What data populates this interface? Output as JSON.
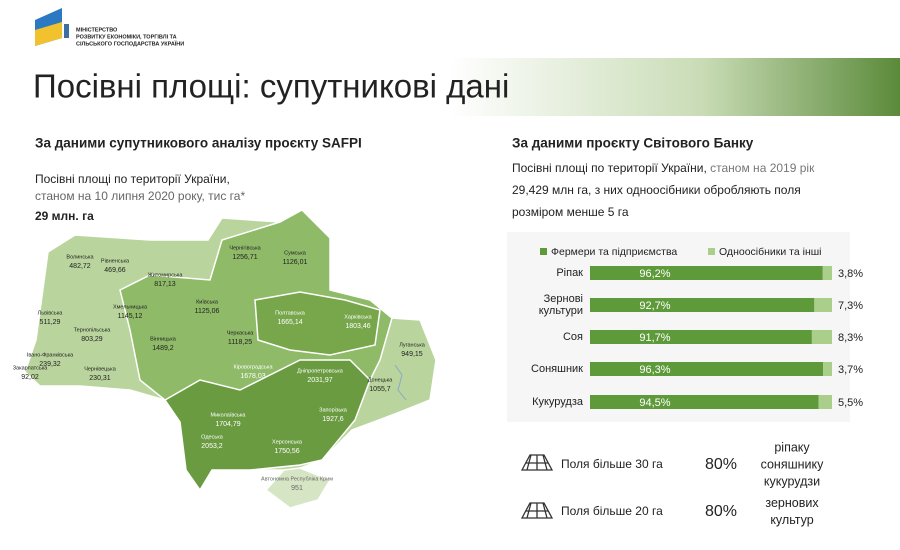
{
  "ministry": [
    "МІНІСТЕРСТВО",
    "РОЗВИТКУ ЕКОНОМІКИ, ТОРГІВЛІ ТА",
    "СІЛЬСЬКОГО ГОСПОДАРСТВА УКРАЇНИ"
  ],
  "title": "Посівні площі: супутникові дані",
  "left": {
    "heading": "За даними супутникового аналізу проєкту SAFPI",
    "line1": "Посівні площі по території України,",
    "line2": "станом на 10 липня 2020 року, тис га*",
    "total": "29 млн. га"
  },
  "map": {
    "regions": [
      {
        "name": "Волинська",
        "value": "482,72"
      },
      {
        "name": "Рівненська",
        "value": "469,66"
      },
      {
        "name": "Львівська",
        "value": "511,29"
      },
      {
        "name": "Тернопільська",
        "value": "803,29"
      },
      {
        "name": "Хмельницька",
        "value": "1145,12"
      },
      {
        "name": "Житомирська",
        "value": "817,13"
      },
      {
        "name": "Київська",
        "value": "1125,06"
      },
      {
        "name": "Чернігівська",
        "value": "1256,71"
      },
      {
        "name": "Сумська",
        "value": "1126,01"
      },
      {
        "name": "Полтавська",
        "value": "1665,14"
      },
      {
        "name": "Харківська",
        "value": "1803,46"
      },
      {
        "name": "Луганська",
        "value": "949,15"
      },
      {
        "name": "Донецька",
        "value": "1055,7"
      },
      {
        "name": "Івано-Франківська",
        "value": "239,32"
      },
      {
        "name": "Закарпатська",
        "value": "92,02"
      },
      {
        "name": "Чернівецька",
        "value": "230,31"
      },
      {
        "name": "Вінницька",
        "value": "1489,2"
      },
      {
        "name": "Черкаська",
        "value": "1118,25"
      },
      {
        "name": "Кіровоградська",
        "value": "1678,03"
      },
      {
        "name": "Дніпропетровська",
        "value": "2031,97"
      },
      {
        "name": "Миколаївська",
        "value": "1704,79"
      },
      {
        "name": "Одеська",
        "value": "2053,2"
      },
      {
        "name": "Запорізька",
        "value": "1927,6"
      },
      {
        "name": "Херсонська",
        "value": "1750,56"
      },
      {
        "name": "Автономна Республіка Крим",
        "value": "951"
      }
    ]
  },
  "right": {
    "heading": "За даними проєкту Світового Банку",
    "line1a": "Посівні площі по території України,",
    "line1b": "станом на 2019 рік",
    "line2": "29,429 млн га, з них одноосібники обробляють поля",
    "line3": "розміром менше 5 га"
  },
  "chart_data": {
    "type": "stacked-bar-horizontal",
    "categories": [
      "Ріпак",
      "Зернові культури",
      "Соя",
      "Соняшник",
      "Кукурудза"
    ],
    "xlim": [
      0,
      100
    ],
    "series": [
      {
        "name": "Фермери та підприємства",
        "color": "#5f9a3a",
        "values": [
          96.2,
          92.7,
          91.7,
          96.3,
          94.5
        ],
        "value_labels": [
          "96,2%",
          "92,7%",
          "91,7%",
          "96,3%",
          "94,5%"
        ]
      },
      {
        "name": "Одноосібники та інші",
        "color": "#a9cf8a",
        "values": [
          3.8,
          7.3,
          8.3,
          3.7,
          5.5
        ],
        "value_labels": [
          "3,8%",
          "7,3%",
          "8,3%",
          "3,7%",
          "5,5%"
        ]
      }
    ]
  },
  "fields": [
    {
      "label": "Поля більше 30 га",
      "percent": "80%",
      "crops": [
        "ріпаку",
        "соняшнику",
        "кукурудзи"
      ]
    },
    {
      "label": "Поля більше 20 га",
      "percent": "80%",
      "crops": [
        "зернових",
        "культур"
      ]
    }
  ]
}
